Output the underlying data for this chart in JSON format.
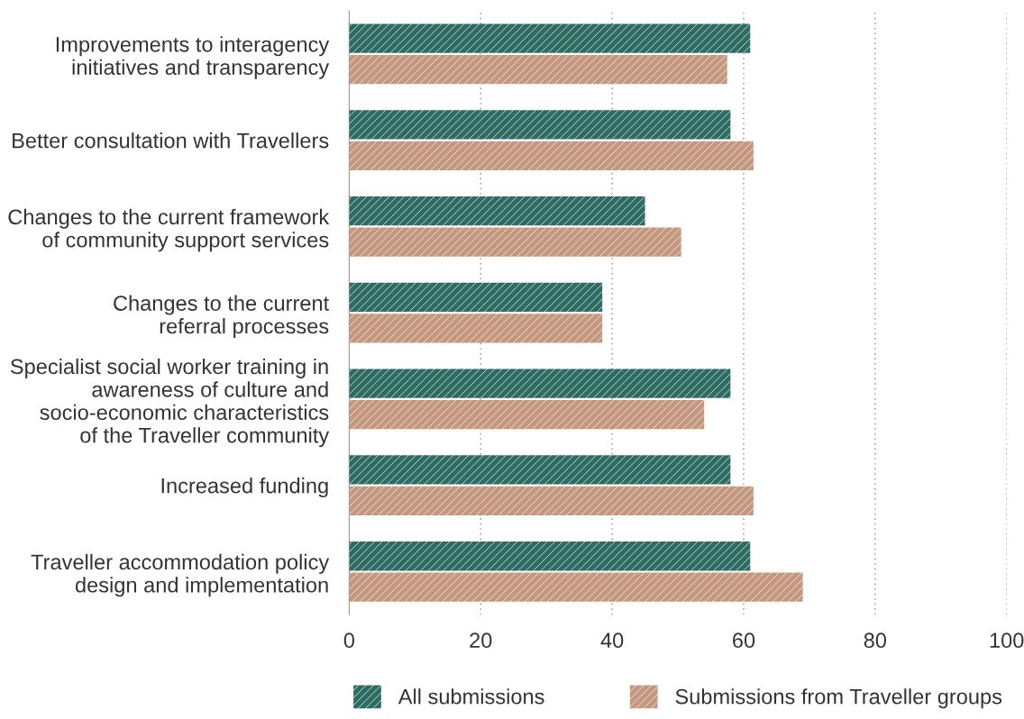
{
  "chart_data": {
    "type": "bar",
    "orientation": "horizontal",
    "categories": [
      "Improvements to interagency\ninitiatives and transparency",
      "Better consultation with Travellers",
      "Changes to the current framework\nof community support services",
      "Changes to the current\nreferral processes",
      "Specialist social worker training in\nawareness of culture and\nsocio-economic characteristics\nof the Traveller community",
      "Increased funding",
      "Traveller accommodation policy\ndesign and implementation"
    ],
    "series": [
      {
        "name": "All submissions",
        "color": "#2e6b63",
        "values": [
          61,
          58,
          45,
          38.5,
          58,
          58,
          61
        ]
      },
      {
        "name": "Submissions from Traveller groups",
        "color": "#c4977f",
        "values": [
          57.5,
          61.5,
          50.5,
          38.5,
          54,
          61.5,
          69
        ]
      }
    ],
    "xlim": [
      0,
      100
    ],
    "xticks": [
      0,
      20,
      40,
      60,
      80,
      100
    ],
    "grid": "x",
    "legend": "bottom"
  }
}
